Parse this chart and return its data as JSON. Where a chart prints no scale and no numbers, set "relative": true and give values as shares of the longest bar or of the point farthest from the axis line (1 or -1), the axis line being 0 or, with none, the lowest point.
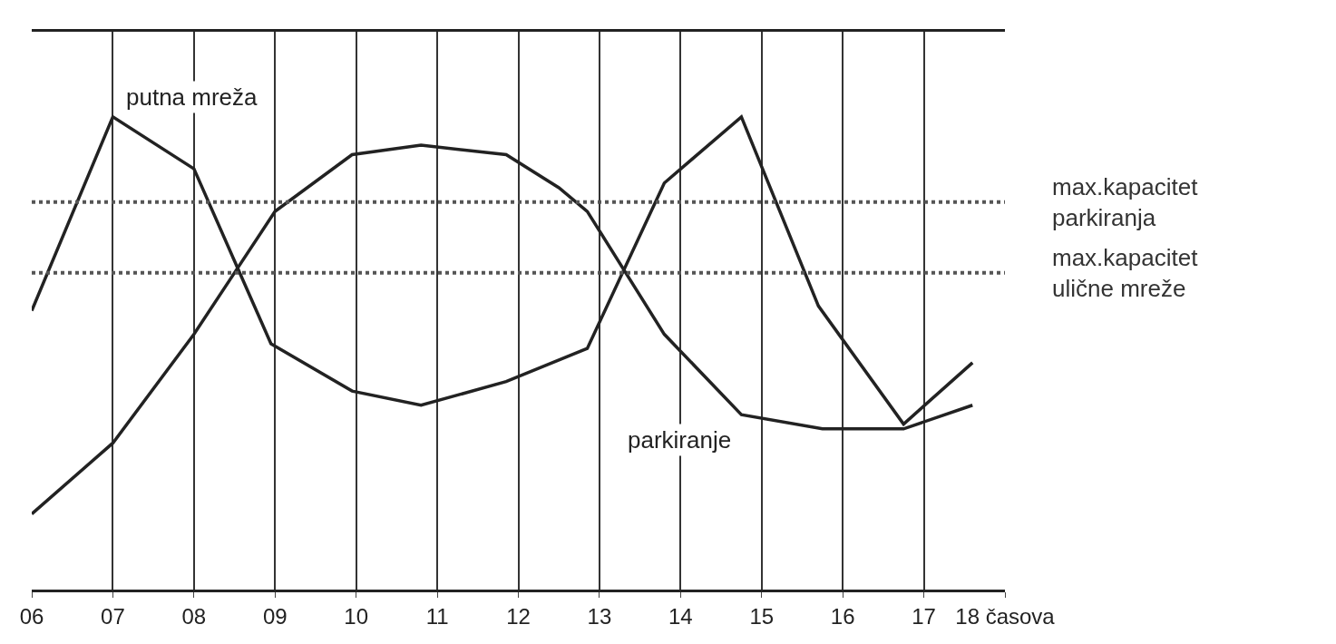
{
  "chart_data": {
    "type": "line",
    "relative": true,
    "xlim": [
      6,
      18
    ],
    "xticks": [
      {
        "value": 6,
        "label": "06"
      },
      {
        "value": 7,
        "label": "07"
      },
      {
        "value": 8,
        "label": "08"
      },
      {
        "value": 9,
        "label": "09"
      },
      {
        "value": 10,
        "label": "10"
      },
      {
        "value": 11,
        "label": "11"
      },
      {
        "value": 12,
        "label": "12"
      },
      {
        "value": 13,
        "label": "13"
      },
      {
        "value": 14,
        "label": "14"
      },
      {
        "value": 15,
        "label": "15"
      },
      {
        "value": 16,
        "label": "16"
      },
      {
        "value": 17,
        "label": "17"
      },
      {
        "value": 18,
        "label": "18 časova"
      }
    ],
    "series": [
      {
        "name": "putna mreža",
        "color": "#222222",
        "x": [
          6,
          7,
          8,
          8.95,
          9.95,
          10.8,
          11.85,
          12.85,
          13.8,
          14.75,
          15.7,
          16.75,
          17.6
        ],
        "values": [
          0.59,
          1,
          0.89,
          0.52,
          0.42,
          0.39,
          0.44,
          0.51,
          0.86,
          1,
          0.6,
          0.35,
          0.48
        ]
      },
      {
        "name": "parkiranje",
        "color": "#222222",
        "x": [
          6,
          7,
          8,
          9,
          9.95,
          10.8,
          11.85,
          12.5,
          12.85,
          13.8,
          14.75,
          15.75,
          16.75,
          17.6
        ],
        "values": [
          0.16,
          0.31,
          0.54,
          0.8,
          0.92,
          0.94,
          0.92,
          0.85,
          0.8,
          0.54,
          0.37,
          0.34,
          0.34,
          0.39
        ]
      }
    ],
    "ref_lines": [
      {
        "axis": "y",
        "value": 0.82,
        "label": "max.kapacitet parkiranja",
        "color": "#555555",
        "line_style": "dotted"
      },
      {
        "axis": "y",
        "value": 0.67,
        "label": "max.kapacitet ulične mreže",
        "color": "#555555",
        "line_style": "dotted"
      }
    ],
    "grid": "x",
    "legend": false,
    "tick_labels": "x",
    "marker": "none",
    "line_style": "solid"
  }
}
